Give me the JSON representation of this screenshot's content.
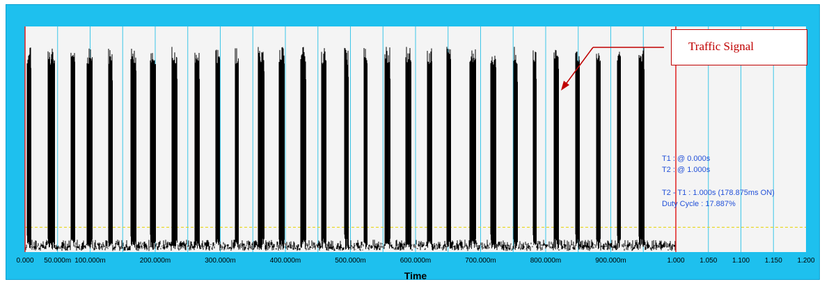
{
  "chart_data": {
    "type": "line",
    "xlabel": "Time",
    "x_ticks": [
      "0.000",
      "50.000m",
      "100.000m",
      "200.000m",
      "300.000m",
      "400.000m",
      "500.000m",
      "600.000m",
      "700.000m",
      "800.000m",
      "900.000m",
      "1.000",
      "1.050",
      "1.100",
      "1.150",
      "1.200"
    ],
    "x_tick_values": [
      0,
      0.05,
      0.1,
      0.2,
      0.3,
      0.4,
      0.5,
      0.6,
      0.7,
      0.8,
      0.9,
      1.0,
      1.05,
      1.1,
      1.15,
      1.2
    ],
    "xlim": [
      0,
      1.2
    ],
    "grid_lines": [
      0.05,
      0.1,
      0.15,
      0.2,
      0.25,
      0.3,
      0.35,
      0.4,
      0.45,
      0.5,
      0.55,
      0.6,
      0.65,
      0.7,
      0.75,
      0.8,
      0.85,
      0.9,
      0.95,
      1.0,
      1.05,
      1.1,
      1.15
    ],
    "signal": {
      "x_end": 1.0,
      "burst_starts": [
        0.003,
        0.035,
        0.07,
        0.095,
        0.128,
        0.162,
        0.192,
        0.225,
        0.26,
        0.292,
        0.322,
        0.358,
        0.39,
        0.423,
        0.455,
        0.49,
        0.52,
        0.552,
        0.585,
        0.618,
        0.648,
        0.683,
        0.715,
        0.75,
        0.78,
        0.812,
        0.845,
        0.878,
        0.91,
        0.943
      ],
      "burst_widths": [
        0.006,
        0.01,
        0.007,
        0.008,
        0.006,
        0.009,
        0.008,
        0.009,
        0.008,
        0.007,
        0.006,
        0.009,
        0.008,
        0.009,
        0.008,
        0.007,
        0.006,
        0.009,
        0.008,
        0.007,
        0.006,
        0.009,
        0.008,
        0.007,
        0.006,
        0.008,
        0.007,
        0.006,
        0.005,
        0.008
      ]
    },
    "cursors": {
      "t1": 0.0,
      "t2": 1.0
    },
    "threshold_level": 0.11,
    "colors": {
      "frame": "#1ec0ee",
      "plot_bg": "#f4f4f4",
      "grid": "#3cc6e8",
      "signal": "#000000",
      "cursor": "#e02020",
      "threshold": "#e6d200",
      "cursor_text": "#2250d8",
      "annotation": "#c00000"
    }
  },
  "cursor_readout": {
    "line1": "T1 : @ 0.000s",
    "line2": "T2 : @ 1.000s",
    "line3": "T2 - T1 : 1.000s (178.875ms ON)",
    "line4": "Duty Cycle : 17.887%"
  },
  "annotation": {
    "text": "Traffic Signal"
  }
}
